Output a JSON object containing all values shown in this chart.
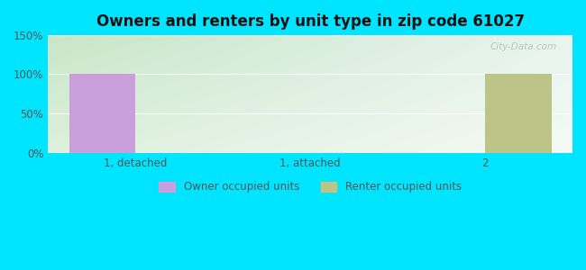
{
  "title": "Owners and renters by unit type in zip code 61027",
  "categories": [
    "1, detached",
    "1, attached",
    "2"
  ],
  "owner_values": [
    100,
    0,
    0
  ],
  "renter_values": [
    0,
    0,
    100
  ],
  "owner_color": "#c9a0dc",
  "renter_color": "#bcc487",
  "ylim_min": 0,
  "ylim_max": 150,
  "yticks": [
    0,
    50,
    100,
    150
  ],
  "ytick_labels": [
    "0%",
    "50%",
    "100%",
    "150%"
  ],
  "bar_width": 0.38,
  "legend_owner": "Owner occupied units",
  "legend_renter": "Renter occupied units",
  "watermark": "City-Data.com",
  "outer_bg": "#00e5ff",
  "grad_top_left": "#d0e8d0",
  "grad_bottom_right": "#f0f8f0",
  "grid_color": "#e8f0e8",
  "tick_color": "#555555",
  "title_color": "#111111"
}
